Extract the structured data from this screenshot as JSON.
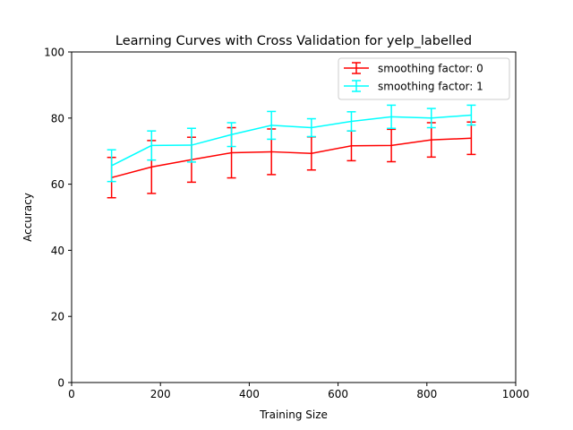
{
  "chart_data": {
    "type": "line",
    "title": "Learning Curves with Cross Validation for yelp_labelled",
    "xlabel": "Training Size",
    "ylabel": "Accuracy",
    "xlim": [
      0,
      1000
    ],
    "ylim": [
      0,
      100
    ],
    "xticks": [
      0,
      200,
      400,
      600,
      800,
      1000
    ],
    "yticks": [
      0,
      20,
      40,
      60,
      80,
      100
    ],
    "grid": false,
    "legend_position": "top-right",
    "x": [
      90,
      180,
      270,
      360,
      450,
      540,
      630,
      720,
      810,
      900
    ],
    "series": [
      {
        "name": "smoothing factor: 0",
        "color": "#ff0000",
        "values": [
          62.0,
          65.2,
          67.4,
          69.5,
          69.8,
          69.3,
          71.6,
          71.7,
          73.4,
          73.9
        ],
        "errors": [
          6.1,
          8.0,
          6.8,
          7.6,
          6.9,
          5.0,
          4.5,
          4.9,
          5.2,
          4.9
        ]
      },
      {
        "name": "smoothing factor: 1",
        "color": "#00ffff",
        "values": [
          65.6,
          71.7,
          71.8,
          75.0,
          77.8,
          77.1,
          79.0,
          80.4,
          80.0,
          80.9
        ],
        "errors": [
          4.8,
          4.4,
          5.1,
          3.6,
          4.2,
          2.7,
          2.9,
          3.5,
          2.9,
          3.0
        ]
      }
    ]
  }
}
